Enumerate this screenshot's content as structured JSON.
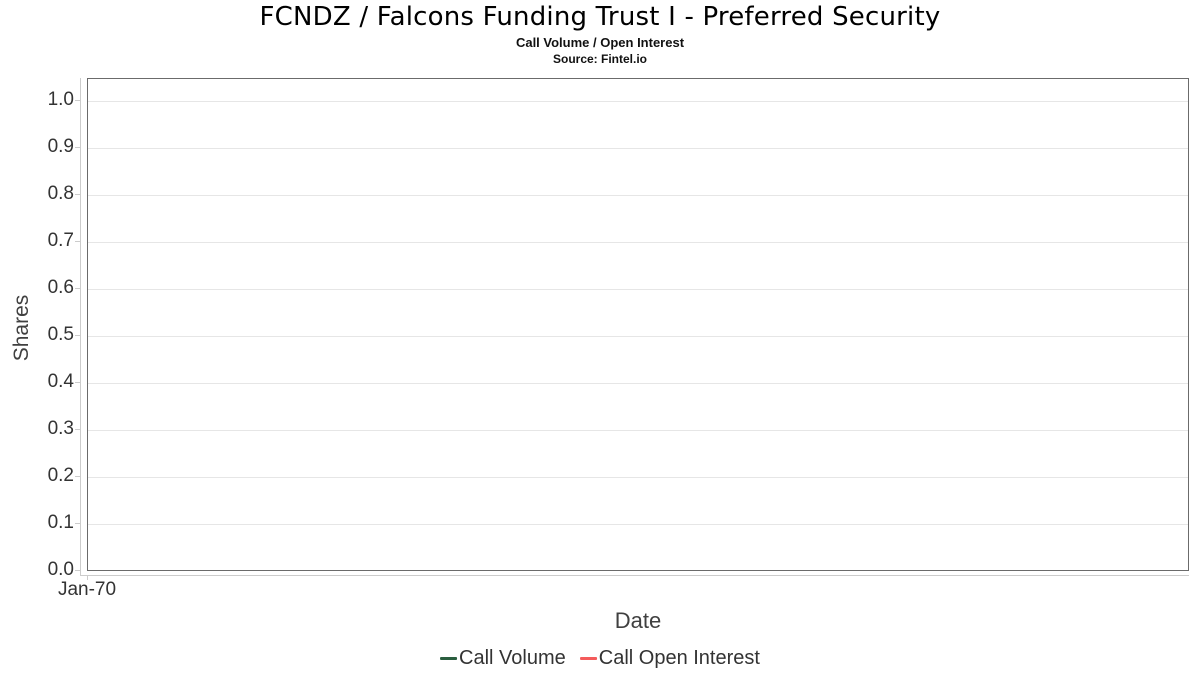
{
  "chart_data": {
    "type": "line",
    "title": "FCNDZ / Falcons Funding Trust I - Preferred Security",
    "subtitle": "Call Volume / Open Interest",
    "source": "Source: Fintel.io",
    "xlabel": "Date",
    "ylabel": "Shares",
    "x_ticks": [
      "Jan-70"
    ],
    "y_ticks": [
      "0.0",
      "0.1",
      "0.2",
      "0.3",
      "0.4",
      "0.5",
      "0.6",
      "0.7",
      "0.8",
      "0.9",
      "1.0"
    ],
    "ylim": [
      0.0,
      1.0
    ],
    "grid": "horizontal",
    "legend_position": "bottom",
    "series": [
      {
        "name": "Call Volume",
        "color": "#2a5e3f",
        "values": []
      },
      {
        "name": "Call Open Interest",
        "color": "#f45b5b",
        "values": []
      }
    ]
  }
}
